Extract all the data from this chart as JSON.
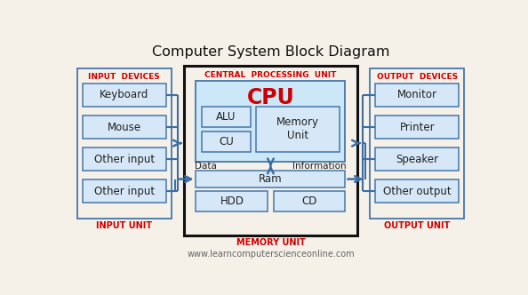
{
  "title": "Computer System Block Diagram",
  "watermark": "www.learncomputerscienceonline.com",
  "bg_color": "#f5f0e8",
  "box_fill_light": "#d6e8f8",
  "box_fill_cpu": "#cce4f5",
  "box_edge": "#4477aa",
  "black": "#111111",
  "red_color": "#cc0000",
  "text_color": "#222222",
  "arrow_color": "#3a6ea5",
  "input_devices": [
    "Keyboard",
    "Mouse",
    "Other input",
    "Other input"
  ],
  "output_devices": [
    "Monitor",
    "Printer",
    "Speaker",
    "Other output"
  ],
  "cpu_label": "CPU",
  "alu_label": "ALU",
  "cu_label": "CU",
  "mem_unit_label": "Memory\nUnit",
  "ram_label": "Ram",
  "hdd_label": "HDD",
  "cd_label": "CD",
  "cpu_section_label": "CENTRAL  PROCESSING  UNIT",
  "memory_unit_label": "MEMORY UNIT",
  "input_devices_label": "INPUT  DEVICES",
  "input_unit_label": "INPUT UNIT",
  "output_devices_label": "OUTPUT  DEVICES",
  "output_unit_label": "OUTPUT UNIT",
  "data_label": "Data",
  "info_label": "Information"
}
